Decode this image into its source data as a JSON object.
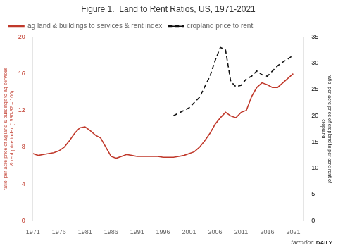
{
  "chart_data": {
    "type": "line",
    "title": "Figure 1.  Land to Rent Ratios, US, 1971-2021",
    "series": [
      {
        "name": "ag land & buildings to services & rent index",
        "color": "#c0392b",
        "line_style": "solid",
        "x": [
          1971,
          1972,
          1973,
          1974,
          1975,
          1976,
          1977,
          1978,
          1979,
          1980,
          1981,
          1982,
          1983,
          1984,
          1985,
          1986,
          1987,
          1988,
          1989,
          1990,
          1991,
          1992,
          1993,
          1994,
          1995,
          1996,
          1997,
          1998,
          1999,
          2000,
          2001,
          2002,
          2003,
          2004,
          2005,
          2006,
          2007,
          2008,
          2009,
          2010,
          2011,
          2012,
          2013,
          2014,
          2015,
          2016,
          2017,
          2018,
          2019,
          2020,
          2021
        ],
        "values": [
          7.3,
          7.1,
          7.2,
          7.3,
          7.4,
          7.6,
          8.0,
          8.7,
          9.5,
          10.1,
          10.2,
          9.8,
          9.3,
          9.0,
          8.0,
          7.0,
          6.8,
          7.0,
          7.2,
          7.1,
          7.0,
          7.0,
          7.0,
          7.0,
          7.0,
          6.9,
          6.9,
          6.9,
          7.0,
          7.1,
          7.3,
          7.5,
          8.0,
          8.7,
          9.5,
          10.5,
          11.2,
          11.8,
          11.4,
          11.2,
          11.8,
          12.0,
          13.5,
          14.5,
          15.0,
          14.8,
          14.5,
          14.5,
          15.0,
          15.5,
          16.0
        ]
      },
      {
        "name": "cropland price to rent",
        "color": "#111111",
        "line_style": "dashed",
        "axis": "y2",
        "x": [
          1998,
          1999,
          2000,
          2001,
          2002,
          2003,
          2004,
          2005,
          2006,
          2007,
          2008,
          2009,
          2010,
          2011,
          2012,
          2013,
          2014,
          2015,
          2016,
          2017,
          2018,
          2019,
          2020,
          2021
        ],
        "values": [
          20.0,
          20.5,
          21.0,
          21.5,
          22.5,
          23.5,
          25.5,
          27.5,
          30.5,
          33.0,
          32.5,
          26.5,
          25.5,
          25.8,
          27.0,
          27.5,
          28.5,
          27.8,
          27.5,
          28.5,
          29.5,
          30.2,
          30.8,
          31.5
        ]
      }
    ],
    "xlim": [
      1971,
      2023
    ],
    "xticks": [
      1971,
      1976,
      1981,
      1986,
      1991,
      1996,
      2001,
      2006,
      2011,
      2016,
      2021
    ],
    "ylim": [
      0,
      20
    ],
    "yticks": [
      0,
      4,
      8,
      12,
      16,
      20
    ],
    "y2lim": [
      0,
      35
    ],
    "y2ticks": [
      0,
      5,
      10,
      15,
      20,
      25,
      30,
      35
    ],
    "ylabel": "ratio: per acre price of ag land & buildings to ag services\n & rent price index (1990-92 = 100)",
    "y2label": "ratio: per acre price of cropland to per acre rent of\ncropland",
    "grid": false,
    "legend": "upper left",
    "annotations": [
      "farmdoc",
      "DAILY"
    ]
  }
}
